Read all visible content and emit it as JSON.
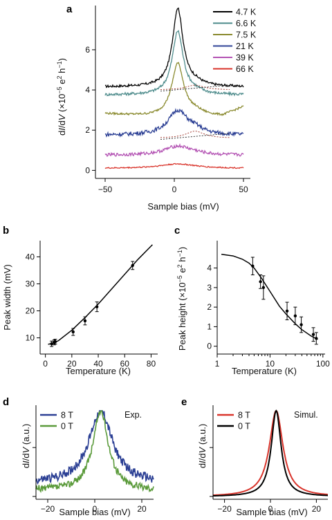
{
  "chart_data": [
    {
      "panel": "a",
      "type": "line",
      "xlabel": "Sample bias (mV)",
      "ylabel_prefix": "d",
      "ylabel_i": "I",
      "ylabel_mid": "/d",
      "ylabel_v": "V",
      "ylabel_suffix": " (×10",
      "ylabel_exp": "−5",
      "ylabel_e": " e",
      "ylabel_e2": "2",
      "ylabel_h": " h",
      "ylabel_hm1": "−1",
      "ylabel_close": ")",
      "xlim": [
        -57,
        55
      ],
      "ylim": [
        -0.4,
        8.2
      ],
      "xticks": [
        -50,
        0,
        50
      ],
      "xtick_labels": [
        "−50",
        "0",
        "50"
      ],
      "yticks": [
        0,
        2,
        4,
        6
      ],
      "ytick_labels": [
        "0",
        "2",
        "4",
        "6"
      ],
      "x_range": [
        -50,
        50
      ],
      "series": [
        {
          "name": "4.7 K",
          "color": "#000000",
          "offset": 4.15,
          "amp": 3.9,
          "width": 4.6,
          "side_amp": 0.15,
          "noise": 0.06
        },
        {
          "name": "6.6 K",
          "color": "#4d8b8b",
          "offset": 3.75,
          "amp": 3.15,
          "width": 4.8,
          "side_amp": 0.12,
          "noise": 0.07
        },
        {
          "name": "7.5 K",
          "color": "#8a8a2e",
          "offset": 2.7,
          "amp": 2.6,
          "width": 5.2,
          "side_amp": 0.18,
          "noise": 0.05
        },
        {
          "name": "21  K",
          "color": "#2b3f94",
          "offset": 1.75,
          "amp": 1.2,
          "width": 8.5,
          "side_amp": 0.22,
          "noise": 0.1
        },
        {
          "name": "39  K",
          "color": "#b352b3",
          "offset": 0.75,
          "amp": 0.45,
          "width": 12.0,
          "side_amp": 0.05,
          "noise": 0.08
        },
        {
          "name": "66  K",
          "color": "#d9342b",
          "offset": 0.1,
          "amp": 0.22,
          "width": 16.0,
          "side_amp": 0.0,
          "noise": 0.03
        }
      ]
    },
    {
      "panel": "b",
      "type": "scatter",
      "xlabel": "Temperature (K)",
      "ylabel": "Peak width (mV)",
      "xlim": [
        -4,
        85
      ],
      "ylim": [
        4,
        46
      ],
      "xticks": [
        0,
        20,
        40,
        60,
        80
      ],
      "yticks": [
        10,
        20,
        30,
        40
      ],
      "points": [
        {
          "x": 4.7,
          "y": 7.8,
          "err": 1.0
        },
        {
          "x": 6.6,
          "y": 8.3,
          "err": 0.9
        },
        {
          "x": 7.5,
          "y": 8.6,
          "err": 0.9
        },
        {
          "x": 21,
          "y": 12.2,
          "err": 1.3
        },
        {
          "x": 30,
          "y": 16.3,
          "err": 1.5
        },
        {
          "x": 39,
          "y": 21.5,
          "err": 1.8
        },
        {
          "x": 66,
          "y": 36.8,
          "err": 1.5
        }
      ],
      "fit": [
        [
          2,
          7.6
        ],
        [
          6,
          8.0
        ],
        [
          10,
          9.0
        ],
        [
          20,
          12.8
        ],
        [
          30,
          17.5
        ],
        [
          40,
          22.5
        ],
        [
          50,
          28.0
        ],
        [
          60,
          33.5
        ],
        [
          70,
          39.0
        ],
        [
          81,
          44.5
        ]
      ]
    },
    {
      "panel": "c",
      "type": "scatter",
      "xlabel": "Temperature (K)",
      "ylabel_main": "Peak height (×10",
      "ylabel_exp": "−5",
      "ylabel_e": " e",
      "ylabel_e2": "2",
      "ylabel_h": " h",
      "ylabel_hm1": "−1",
      "ylabel_close": ")",
      "xscale": "log",
      "xlim": [
        1,
        110
      ],
      "ylim": [
        -0.4,
        5.4
      ],
      "xticks": [
        1,
        10,
        100
      ],
      "yticks": [
        0,
        1,
        2,
        3,
        4
      ],
      "points": [
        {
          "x": 4.7,
          "y": 4.1,
          "err": 0.45
        },
        {
          "x": 6.6,
          "y": 3.3,
          "err": 0.35
        },
        {
          "x": 7.5,
          "y": 3.0,
          "err": 0.6
        },
        {
          "x": 21,
          "y": 1.8,
          "err": 0.45
        },
        {
          "x": 30,
          "y": 1.55,
          "err": 0.45
        },
        {
          "x": 39,
          "y": 1.1,
          "err": 0.4
        },
        {
          "x": 66,
          "y": 0.6,
          "err": 0.35
        },
        {
          "x": 75,
          "y": 0.4,
          "err": 0.3
        }
      ],
      "fit": [
        [
          1.2,
          4.7
        ],
        [
          2,
          4.62
        ],
        [
          3,
          4.45
        ],
        [
          4,
          4.25
        ],
        [
          5,
          4.0
        ],
        [
          7,
          3.45
        ],
        [
          10,
          2.8
        ],
        [
          15,
          2.05
        ],
        [
          20,
          1.65
        ],
        [
          30,
          1.15
        ],
        [
          40,
          0.85
        ],
        [
          60,
          0.52
        ],
        [
          80,
          0.35
        ]
      ]
    },
    {
      "panel": "d",
      "type": "line",
      "xlabel": "Sample bias (mV)",
      "ylabel_prefix": "d",
      "ylabel_i": "I",
      "ylabel_mid": "/d",
      "ylabel_v": "V",
      "ylabel_suffix": " (a.u.)",
      "annotation": "Exp.",
      "xlim": [
        -25,
        25
      ],
      "xticks": [
        -20,
        0,
        20
      ],
      "xtick_labels": [
        "−20",
        "0",
        "20"
      ],
      "series": [
        {
          "name": "8 T",
          "color": "#2b3f94",
          "width": 6.0,
          "noise": 0.05,
          "base": 0.18
        },
        {
          "name": "0 T",
          "color": "#5a9a3a",
          "width": 4.0,
          "noise": 0.04,
          "base": 0.1
        }
      ]
    },
    {
      "panel": "e",
      "type": "line",
      "xlabel": "Sample bias (mV)",
      "ylabel_prefix": "d",
      "ylabel_i": "I",
      "ylabel_mid": "/d",
      "ylabel_v": "V",
      "ylabel_suffix": " (a.u.)",
      "annotation": "Simul.",
      "xlim": [
        -25,
        25
      ],
      "xticks": [
        -20,
        0,
        20
      ],
      "xtick_labels": [
        "−20",
        "0",
        "20"
      ],
      "series": [
        {
          "name": "8 T",
          "color": "#d9342b",
          "width": 3.6
        },
        {
          "name": "0 T",
          "color": "#000000",
          "width": 2.6
        }
      ]
    }
  ]
}
